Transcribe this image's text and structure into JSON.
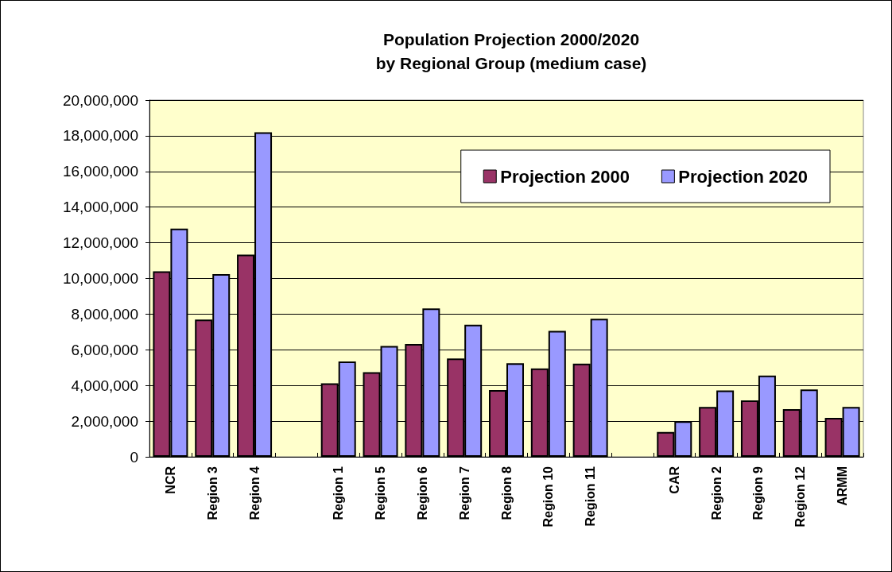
{
  "chart_data": {
    "type": "bar",
    "title": "Population Projection 2000/2020\nby Regional Group (medium case)",
    "categories": [
      "NCR",
      "Region 3",
      "Region 4",
      null,
      "Region 1",
      "Region 5",
      "Region 6",
      "Region 7",
      "Region 8",
      "Region 10",
      "Region 11",
      null,
      "CAR",
      "Region 2",
      "Region 9",
      "Region 12",
      "ARMM"
    ],
    "series": [
      {
        "name": "Projection 2000",
        "color": "#993366",
        "values": [
          10400000,
          7700000,
          11340000,
          null,
          4120000,
          4740000,
          6320000,
          5510000,
          3740000,
          4960000,
          5220000,
          null,
          1390000,
          2800000,
          3160000,
          2670000,
          2180000
        ]
      },
      {
        "name": "Projection 2020",
        "color": "#9999ff",
        "values": [
          12800000,
          10250000,
          18200000,
          null,
          5340000,
          6210000,
          8320000,
          7410000,
          5250000,
          7060000,
          7740000,
          null,
          1990000,
          3720000,
          4550000,
          3780000,
          2800000
        ]
      }
    ],
    "ylim": [
      0,
      20000000
    ],
    "yticks": [
      0,
      {
        "value": 2000000,
        "label": "2,000,000"
      },
      {
        "value": 4000000,
        "label": "4,000,000"
      },
      {
        "value": 6000000,
        "label": "6,000,000"
      },
      {
        "value": 8000000,
        "label": "8,000,000"
      },
      {
        "value": 10000000,
        "label": "10,000,000"
      },
      {
        "value": 12000000,
        "label": "12,000,000"
      },
      {
        "value": 14000000,
        "label": "14,000,000"
      },
      {
        "value": 16000000,
        "label": "16,000,000"
      },
      {
        "value": 18000000,
        "label": "18,000,000"
      },
      {
        "value": 20000000,
        "label": "20,000,000"
      }
    ],
    "grid": "y",
    "legend": "top right"
  }
}
